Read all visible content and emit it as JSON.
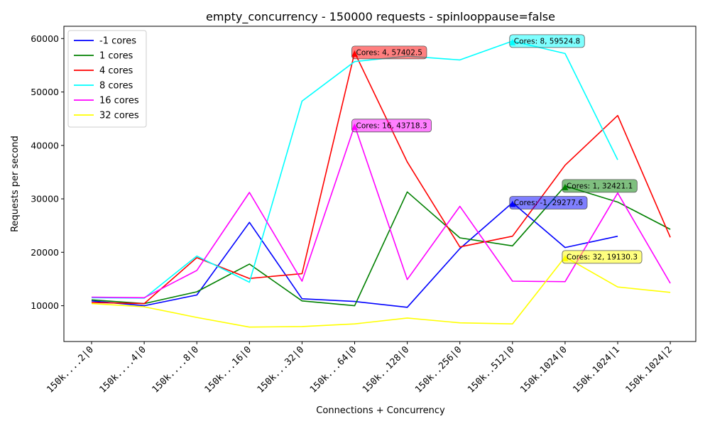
{
  "chart_data": {
    "type": "line",
    "title": "empty_concurrency - 150000 requests - spinlooppause=false",
    "xlabel": "Connections + Concurrency",
    "ylabel": "Requests per second",
    "categories": [
      "150k....2|0",
      "150k....4|0",
      "150k....8|0",
      "150k...16|0",
      "150k...32|0",
      "150k...64|0",
      "150k..128|0",
      "150k..256|0",
      "150k..512|0",
      "150k.1024|0",
      "150k.1024|1",
      "150k.1024|2"
    ],
    "ylim": [
      3300,
      62300
    ],
    "yticks": [
      10000,
      20000,
      30000,
      40000,
      50000,
      60000
    ],
    "ytick_labels": [
      "10000",
      "20000",
      "30000",
      "40000",
      "50000",
      "60000"
    ],
    "legend_position": "upper-left",
    "series": [
      {
        "name": "-1 cores",
        "color": "#0000ff",
        "values": [
          10900,
          10000,
          12000,
          25600,
          11300,
          10800,
          9700,
          20700,
          29277.6,
          20900,
          23000,
          null
        ]
      },
      {
        "name": "1 cores",
        "color": "#008000",
        "values": [
          11100,
          10400,
          12600,
          17800,
          10900,
          10000,
          31300,
          22700,
          21200,
          32421.1,
          29400,
          24300
        ]
      },
      {
        "name": "4 cores",
        "color": "#ff0000",
        "values": [
          10600,
          10400,
          19000,
          15100,
          16000,
          57402.5,
          36900,
          21000,
          23000,
          36300,
          45600,
          22800
        ]
      },
      {
        "name": "8 cores",
        "color": "#00ffff",
        "values": [
          11500,
          11400,
          19300,
          14400,
          48300,
          55700,
          56700,
          56000,
          59524.8,
          57200,
          37300,
          null
        ]
      },
      {
        "name": "16 cores",
        "color": "#ff00ff",
        "values": [
          11600,
          11500,
          16600,
          31200,
          14600,
          43718.3,
          14900,
          28600,
          14600,
          14500,
          31100,
          14200
        ]
      },
      {
        "name": "32 cores",
        "color": "#ffff00",
        "values": [
          10400,
          9800,
          7800,
          6000,
          6100,
          6600,
          7700,
          6800,
          6600,
          19130.3,
          13500,
          12500
        ]
      }
    ],
    "annotations": [
      {
        "text": "Cores: 4, 57402.5",
        "series": 2,
        "index": 5,
        "y": 57402.5,
        "color": "#ff0000"
      },
      {
        "text": "Cores: 8, 59524.8",
        "series": 3,
        "index": 8,
        "y": 59524.8,
        "color": "#00ffff"
      },
      {
        "text": "Cores: 16, 43718.3",
        "series": 4,
        "index": 5,
        "y": 43718.3,
        "color": "#ff00ff"
      },
      {
        "text": "Cores: 1, 32421.1",
        "series": 1,
        "index": 9,
        "y": 32421.1,
        "color": "#008000"
      },
      {
        "text": "Cores: -1, 29277.6",
        "series": 0,
        "index": 8,
        "y": 29277.6,
        "color": "#0000ff"
      },
      {
        "text": "Cores: 32, 19130.3",
        "series": 5,
        "index": 9,
        "y": 19130.3,
        "color": "#ffff00"
      }
    ]
  }
}
